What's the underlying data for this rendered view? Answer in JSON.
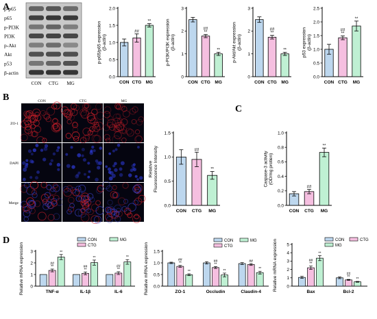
{
  "panels": {
    "a": "A",
    "b": "B",
    "c": "C",
    "d": "D"
  },
  "western_blot": {
    "rows": [
      "p-p65",
      "p65",
      "p-PI3K",
      "PI3K",
      "p-Akt",
      "Akt",
      "p53",
      "β-actin"
    ],
    "lanes": [
      "CON",
      "CTG",
      "MG"
    ]
  },
  "microscopy": {
    "columns": [
      "CON",
      "CTG",
      "MG"
    ],
    "rows": [
      "ZO-1",
      "DAPI",
      "Merge"
    ]
  },
  "colors": {
    "CON": "#bdd7ee",
    "CTG": "#f5bfe0",
    "MG": "#bff0d3",
    "stroke": "#000000"
  },
  "chart_data": [
    {
      "id": "p65",
      "type": "bar",
      "categories": [
        "CON",
        "CTG",
        "MG"
      ],
      "values": [
        1.0,
        1.13,
        1.5
      ],
      "errors": [
        0.1,
        0.12,
        0.05
      ],
      "marks": [
        "",
        "##",
        "**"
      ],
      "ylabel_lines": [
        "p-p65/p65 expression",
        "(β-actin)"
      ],
      "ylim": [
        0,
        2.0
      ],
      "yticks": [
        "0.0",
        "0.5",
        "1.0",
        "1.5",
        "2.0"
      ]
    },
    {
      "id": "pi3k",
      "type": "bar",
      "categories": [
        "CON",
        "CTG",
        "MG"
      ],
      "values": [
        2.5,
        1.78,
        1.0
      ],
      "errors": [
        0.1,
        0.07,
        0.07
      ],
      "marks": [
        "",
        "##\n**",
        "**"
      ],
      "ylabel_lines": [
        "p-PI3K/PI3K expression",
        "(β-actin)"
      ],
      "ylim": [
        0,
        3
      ],
      "yticks": [
        "0",
        "1",
        "2",
        "3"
      ]
    },
    {
      "id": "akt",
      "type": "bar",
      "categories": [
        "CON",
        "CTG",
        "MG"
      ],
      "values": [
        2.5,
        1.73,
        1.0
      ],
      "errors": [
        0.12,
        0.08,
        0.07
      ],
      "marks": [
        "",
        "##\n**",
        "**"
      ],
      "ylabel_lines": [
        "p-Akt/Akt expression",
        "(β-actin)"
      ],
      "ylim": [
        0,
        3
      ],
      "yticks": [
        "0",
        "1",
        "2",
        "3"
      ]
    },
    {
      "id": "p53",
      "type": "bar",
      "categories": [
        "CON",
        "CTG",
        "MG"
      ],
      "values": [
        1.0,
        1.42,
        1.85
      ],
      "errors": [
        0.18,
        0.07,
        0.18
      ],
      "marks": [
        "",
        "##\n**",
        "**"
      ],
      "ylabel_lines": [
        "p53 expression",
        "(β-actin)"
      ],
      "ylim": [
        0,
        2.5
      ],
      "yticks": [
        "0.0",
        "0.5",
        "1.0",
        "1.5",
        "2.0",
        "2.5"
      ]
    },
    {
      "id": "fluor",
      "type": "bar",
      "categories": [
        "CON",
        "CTG",
        "MG"
      ],
      "values": [
        1.0,
        0.95,
        0.62
      ],
      "errors": [
        0.15,
        0.15,
        0.08
      ],
      "marks": [
        "",
        "##",
        "**"
      ],
      "ylabel_lines": [
        "Relative",
        "Fluorescence Intensity"
      ],
      "ylim": [
        0,
        1.5
      ],
      "yticks": [
        "0.0",
        "0.5",
        "1.0",
        "1.5"
      ]
    },
    {
      "id": "caspase",
      "type": "bar",
      "categories": [
        "CON",
        "CTG",
        "MG"
      ],
      "values": [
        0.16,
        0.19,
        0.73
      ],
      "errors": [
        0.03,
        0.03,
        0.06
      ],
      "marks": [
        "",
        "##",
        "**"
      ],
      "ylabel_lines": [
        "Caspase-3 activity",
        "(OD/mg protien)"
      ],
      "ylim": [
        0,
        1.0
      ],
      "yticks": [
        "0.0",
        "0.2",
        "0.4",
        "0.6",
        "0.8",
        "1.0"
      ]
    },
    {
      "id": "cytokines",
      "type": "bar",
      "categories": [
        "TNF-α",
        "IL-1β",
        "IL-6"
      ],
      "series": [
        {
          "name": "CON",
          "values": [
            1.0,
            1.0,
            1.0
          ],
          "errors": [
            0,
            0,
            0
          ]
        },
        {
          "name": "CTG",
          "values": [
            1.35,
            1.1,
            1.12
          ],
          "errors": [
            0.12,
            0.12,
            0.12
          ]
        },
        {
          "name": "MG",
          "values": [
            2.5,
            2.02,
            2.08
          ],
          "errors": [
            0.22,
            0.22,
            0.2
          ]
        }
      ],
      "marks": [
        [
          "",
          "##\n**",
          "**"
        ],
        [
          "",
          "##\n**",
          "**"
        ],
        [
          "",
          "##\n**",
          "**"
        ]
      ],
      "ylabel_lines": [
        "Relative  mRNA expression"
      ],
      "ylim": [
        0,
        3
      ],
      "yticks": [
        "0",
        "1",
        "2",
        "3"
      ],
      "legend": [
        "CON",
        "MG",
        "CTG"
      ]
    },
    {
      "id": "junctions",
      "type": "bar",
      "categories": [
        "ZO-1",
        "Occludin",
        "Claudin-4"
      ],
      "series": [
        {
          "name": "CON",
          "values": [
            1.0,
            1.0,
            0.97
          ],
          "errors": [
            0.03,
            0.05,
            0.04
          ]
        },
        {
          "name": "CTG",
          "values": [
            0.85,
            0.8,
            0.93
          ],
          "errors": [
            0.04,
            0.04,
            0.04
          ]
        },
        {
          "name": "MG",
          "values": [
            0.49,
            0.48,
            0.58
          ],
          "errors": [
            0.04,
            0.08,
            0.06
          ]
        }
      ],
      "marks": [
        [
          "",
          "##\n**",
          "**"
        ],
        [
          "",
          "##\n**",
          "**"
        ],
        [
          "",
          "##",
          "**"
        ]
      ],
      "ylabel_lines": [
        "Relative  mRNA expression"
      ],
      "ylim": [
        0,
        1.5
      ],
      "yticks": [
        "0.0",
        "0.5",
        "1.0",
        "1.5"
      ],
      "legend": [
        "CON",
        "MG",
        "CTG"
      ]
    },
    {
      "id": "apoptosis",
      "type": "bar",
      "categories": [
        "Bax",
        "Bcl-2"
      ],
      "series": [
        {
          "name": "CON",
          "values": [
            1.05,
            1.0
          ],
          "errors": [
            0.12,
            0.1
          ]
        },
        {
          "name": "CTG",
          "values": [
            2.2,
            0.75
          ],
          "errors": [
            0.2,
            0.06
          ]
        },
        {
          "name": "MG",
          "values": [
            3.35,
            0.52
          ],
          "errors": [
            0.3,
            0.05
          ]
        }
      ],
      "marks": [
        [
          "",
          "##\n**",
          "**"
        ],
        [
          "",
          "##\n**",
          "**"
        ]
      ],
      "ylabel_lines": [
        "Relative  mRNA expression"
      ],
      "ylim": [
        0,
        5
      ],
      "yticks": [
        "0",
        "1",
        "2",
        "3",
        "4",
        "5"
      ],
      "legend": [
        "CON",
        "CTG",
        "MG"
      ]
    }
  ]
}
